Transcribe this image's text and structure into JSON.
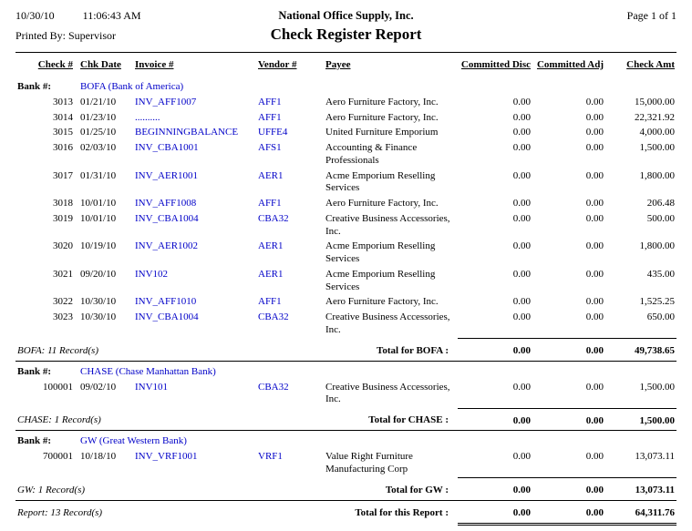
{
  "header": {
    "date": "10/30/10",
    "time": "11:06:43 AM",
    "company": "National Office Supply, Inc.",
    "page": "Page 1 of 1",
    "printed_by": "Printed By: Supervisor",
    "title": "Check Register Report"
  },
  "columns": [
    "Check #",
    "Chk Date",
    "Invoice #",
    "Vendor #",
    "Payee",
    "Committed Disc",
    "Committed Adj",
    "Check Amt"
  ],
  "groups": [
    {
      "bank_label": "Bank #:",
      "bank_name": "BOFA (Bank of America)",
      "rows": [
        [
          "3013",
          "01/21/10",
          "INV_AFF1007",
          "AFF1",
          "Aero Furniture Factory, Inc.",
          "0.00",
          "0.00",
          "15,000.00"
        ],
        [
          "3014",
          "01/23/10",
          "..........",
          "AFF1",
          "Aero Furniture Factory, Inc.",
          "0.00",
          "0.00",
          "22,321.92"
        ],
        [
          "3015",
          "01/25/10",
          "BEGINNINGBALANCE",
          "UFFE4",
          "United Furniture Emporium",
          "0.00",
          "0.00",
          "4,000.00"
        ],
        [
          "3016",
          "02/03/10",
          "INV_CBA1001",
          "AFS1",
          "Accounting & Finance Professionals",
          "0.00",
          "0.00",
          "1,500.00"
        ],
        [
          "3017",
          "01/31/10",
          "INV_AER1001",
          "AER1",
          "Acme Emporium Reselling Services",
          "0.00",
          "0.00",
          "1,800.00"
        ],
        [
          "3018",
          "10/01/10",
          "INV_AFF1008",
          "AFF1",
          "Aero Furniture Factory, Inc.",
          "0.00",
          "0.00",
          "206.48"
        ],
        [
          "3019",
          "10/01/10",
          "INV_CBA1004",
          "CBA32",
          "Creative Business Accessories, Inc.",
          "0.00",
          "0.00",
          "500.00"
        ],
        [
          "3020",
          "10/19/10",
          "INV_AER1002",
          "AER1",
          "Acme Emporium Reselling Services",
          "0.00",
          "0.00",
          "1,800.00"
        ],
        [
          "3021",
          "09/20/10",
          "INV102",
          "AER1",
          "Acme Emporium Reselling Services",
          "0.00",
          "0.00",
          "435.00"
        ],
        [
          "3022",
          "10/30/10",
          "INV_AFF1010",
          "AFF1",
          "Aero Furniture Factory, Inc.",
          "0.00",
          "0.00",
          "1,525.25"
        ],
        [
          "3023",
          "10/30/10",
          "INV_CBA1004",
          "CBA32",
          "Creative Business Accessories, Inc.",
          "0.00",
          "0.00",
          "650.00"
        ]
      ],
      "record_count": "BOFA: 11 Record(s)",
      "total_label": "Total for BOFA :",
      "totals": [
        "0.00",
        "0.00",
        "49,738.65"
      ]
    },
    {
      "bank_label": "Bank #:",
      "bank_name": "CHASE (Chase Manhattan Bank)",
      "rows": [
        [
          "100001",
          "09/02/10",
          "INV101",
          "CBA32",
          "Creative Business Accessories, Inc.",
          "0.00",
          "0.00",
          "1,500.00"
        ]
      ],
      "record_count": "CHASE: 1 Record(s)",
      "total_label": "Total for CHASE :",
      "totals": [
        "0.00",
        "0.00",
        "1,500.00"
      ]
    },
    {
      "bank_label": "Bank #:",
      "bank_name": "GW (Great Western Bank)",
      "rows": [
        [
          "700001",
          "10/18/10",
          "INV_VRF1001",
          "VRF1",
          "Value Right Furniture Manufacturing Corp",
          "0.00",
          "0.00",
          "13,073.11"
        ]
      ],
      "record_count": "GW: 1 Record(s)",
      "total_label": "Total for GW :",
      "totals": [
        "0.00",
        "0.00",
        "13,073.11"
      ]
    }
  ],
  "report_summary": {
    "record_count": "Report: 13 Record(s)",
    "total_label": "Total for this Report :",
    "totals": [
      "0.00",
      "0.00",
      "64,311.76"
    ]
  },
  "colors": {
    "link_blue": "#0000c8",
    "text": "#000000"
  }
}
